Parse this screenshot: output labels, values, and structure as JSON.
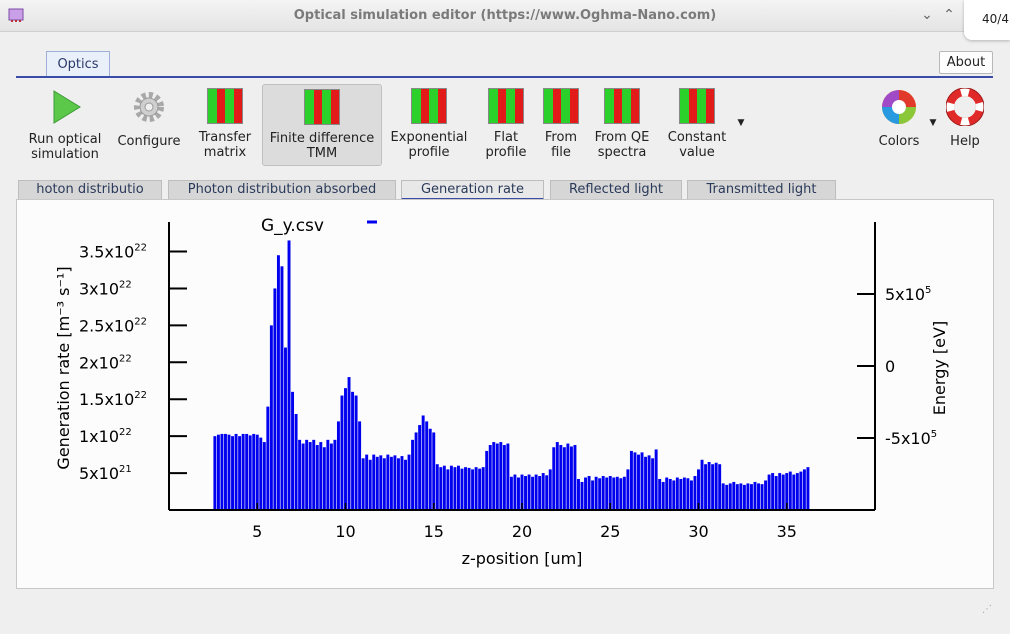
{
  "window": {
    "title": "Optical simulation editor (https://www.Oghma-Nano.com)",
    "counter": "40/4"
  },
  "ribbon": {
    "tab": "Optics",
    "about": "About",
    "tools": [
      {
        "line1": "Run optical",
        "line2": "simulation"
      },
      {
        "line1": "Configure",
        "line2": ""
      },
      {
        "line1": "Transfer",
        "line2": "matrix"
      },
      {
        "line1": "Finite difference",
        "line2": "TMM"
      },
      {
        "line1": "Exponential",
        "line2": "profile"
      },
      {
        "line1": "Flat",
        "line2": "profile"
      },
      {
        "line1": "From",
        "line2": "file"
      },
      {
        "line1": "From QE",
        "line2": "spectra"
      },
      {
        "line1": "Constant",
        "line2": "value"
      },
      {
        "line1": "Colors",
        "line2": ""
      },
      {
        "line1": "Help",
        "line2": ""
      }
    ]
  },
  "subtabs": [
    "hoton distributio",
    "Photon distribution absorbed",
    "Generation rate",
    "Reflected light",
    "Transmitted light"
  ],
  "colors": {
    "accent": "#3a4ca8",
    "series": "#0000ee",
    "run": "#5cc84a"
  },
  "chart_data": {
    "type": "bar",
    "legend_label": "G_y.csv",
    "xlabel": "z-position [um]",
    "ylabel_left": "Generation rate [m⁻³ s⁻¹]",
    "ylabel_right": "Energy [eV]",
    "xlim": [
      0,
      40
    ],
    "ylim": [
      0,
      3.9e+22
    ],
    "xticks": [
      5,
      10,
      15,
      20,
      25,
      30,
      35
    ],
    "yticks_left": [
      {
        "value": 5e+21,
        "mant": "5x10",
        "exp": "21"
      },
      {
        "value": 1e+22,
        "mant": "1x10",
        "exp": "22"
      },
      {
        "value": 1.5e+22,
        "mant": "1.5x10",
        "exp": "22"
      },
      {
        "value": 2e+22,
        "mant": "2x10",
        "exp": "22"
      },
      {
        "value": 2.5e+22,
        "mant": "2.5x10",
        "exp": "22"
      },
      {
        "value": 3e+22,
        "mant": "3x10",
        "exp": "22"
      },
      {
        "value": 3.5e+22,
        "mant": "3.5x10",
        "exp": "22"
      }
    ],
    "yticks_right": [
      {
        "value": 500000,
        "mant": "5x10",
        "exp": "5"
      },
      {
        "value": 0,
        "mant": "0",
        "exp": ""
      },
      {
        "value": -500000,
        "mant": "-5x10",
        "exp": "5"
      }
    ],
    "ylim_right": [
      -1000000,
      1000000
    ],
    "points": [
      [
        2.6,
        1e+22
      ],
      [
        2.8,
        1.02e+22
      ],
      [
        3.0,
        1.03e+22
      ],
      [
        3.2,
        1.03e+22
      ],
      [
        3.4,
        1.02e+22
      ],
      [
        3.6,
        1e+22
      ],
      [
        3.8,
        1.03e+22
      ],
      [
        4.0,
        1e+22
      ],
      [
        4.2,
        1.03e+22
      ],
      [
        4.4,
        1.03e+22
      ],
      [
        4.6,
        1.01e+22
      ],
      [
        4.8,
        1.03e+22
      ],
      [
        5.0,
        1.02e+22
      ],
      [
        5.2,
        9.8e+21
      ],
      [
        5.4,
        9.2e+21
      ],
      [
        5.6,
        1.4e+22
      ],
      [
        5.8,
        2.5e+22
      ],
      [
        6.0,
        3e+22
      ],
      [
        6.2,
        3.45e+22
      ],
      [
        6.4,
        3.3e+22
      ],
      [
        6.6,
        2.2e+22
      ],
      [
        6.8,
        3.65e+22
      ],
      [
        7.0,
        1.6e+22
      ],
      [
        7.2,
        1.3e+22
      ],
      [
        7.4,
        9.5e+21
      ],
      [
        7.6,
        9e+21
      ],
      [
        7.8,
        9.5e+21
      ],
      [
        8.0,
        9.2e+21
      ],
      [
        8.2,
        9.5e+21
      ],
      [
        8.4,
        8.8e+21
      ],
      [
        8.6,
        9.2e+21
      ],
      [
        8.8,
        8.5e+21
      ],
      [
        9.0,
        9.5e+21
      ],
      [
        9.2,
        9e+21
      ],
      [
        9.4,
        9.5e+21
      ],
      [
        9.6,
        1.2e+22
      ],
      [
        9.8,
        1.55e+22
      ],
      [
        10.0,
        1.65e+22
      ],
      [
        10.2,
        1.8e+22
      ],
      [
        10.4,
        1.6e+22
      ],
      [
        10.6,
        1.55e+22
      ],
      [
        10.8,
        1.2e+22
      ],
      [
        11.0,
        7e+21
      ],
      [
        11.2,
        7.5e+21
      ],
      [
        11.4,
        6.8e+21
      ],
      [
        11.6,
        7.5e+21
      ],
      [
        11.8,
        7.2e+21
      ],
      [
        12.0,
        7.4e+21
      ],
      [
        12.2,
        7e+21
      ],
      [
        12.4,
        7.5e+21
      ],
      [
        12.6,
        7.2e+21
      ],
      [
        12.8,
        7.4e+21
      ],
      [
        13.0,
        7e+21
      ],
      [
        13.2,
        7.3e+21
      ],
      [
        13.4,
        6.8e+21
      ],
      [
        13.6,
        7.5e+21
      ],
      [
        13.8,
        9.5e+21
      ],
      [
        14.0,
        1.05e+22
      ],
      [
        14.2,
        1.15e+22
      ],
      [
        14.4,
        1.28e+22
      ],
      [
        14.6,
        1.2e+22
      ],
      [
        14.8,
        1.1e+22
      ],
      [
        15.0,
        1.05e+22
      ],
      [
        15.2,
        6.2e+21
      ],
      [
        15.4,
        5.8e+21
      ],
      [
        15.6,
        6e+21
      ],
      [
        15.8,
        5.5e+21
      ],
      [
        16.0,
        6e+21
      ],
      [
        16.2,
        5.8e+21
      ],
      [
        16.4,
        6e+21
      ],
      [
        16.6,
        5.6e+21
      ],
      [
        16.8,
        5.8e+21
      ],
      [
        17.0,
        5.7e+21
      ],
      [
        17.2,
        5.5e+21
      ],
      [
        17.4,
        5.8e+21
      ],
      [
        17.6,
        5.6e+21
      ],
      [
        17.8,
        5.8e+21
      ],
      [
        18.0,
        8e+21
      ],
      [
        18.2,
        8.8e+21
      ],
      [
        18.4,
        9.2e+21
      ],
      [
        18.6,
        9e+21
      ],
      [
        18.8,
        9.2e+21
      ],
      [
        19.0,
        8.8e+21
      ],
      [
        19.2,
        9e+21
      ],
      [
        19.4,
        4.5e+21
      ],
      [
        19.6,
        4.8e+21
      ],
      [
        19.8,
        4.4e+21
      ],
      [
        20.0,
        4.8e+21
      ],
      [
        20.2,
        4.6e+21
      ],
      [
        20.4,
        4.8e+21
      ],
      [
        20.6,
        4.5e+21
      ],
      [
        20.8,
        4.8e+21
      ],
      [
        21.0,
        4.6e+21
      ],
      [
        21.2,
        5e+21
      ],
      [
        21.4,
        4.7e+21
      ],
      [
        21.6,
        5.5e+21
      ],
      [
        21.8,
        8.5e+21
      ],
      [
        22.0,
        9.2e+21
      ],
      [
        22.2,
        8.8e+21
      ],
      [
        22.4,
        8.5e+21
      ],
      [
        22.6,
        9e+21
      ],
      [
        22.8,
        8.6e+21
      ],
      [
        23.0,
        8.8e+21
      ],
      [
        23.2,
        4.2e+21
      ],
      [
        23.4,
        3.8e+21
      ],
      [
        23.6,
        4.4e+21
      ],
      [
        23.8,
        4.6e+21
      ],
      [
        24.0,
        4e+21
      ],
      [
        24.2,
        4.5e+21
      ],
      [
        24.4,
        4.3e+21
      ],
      [
        24.6,
        4.6e+21
      ],
      [
        24.8,
        4.4e+21
      ],
      [
        25.0,
        4.6e+21
      ],
      [
        25.2,
        4.4e+21
      ],
      [
        25.4,
        4.5e+21
      ],
      [
        25.6,
        4.3e+21
      ],
      [
        25.8,
        4.5e+21
      ],
      [
        26.0,
        5.5e+21
      ],
      [
        26.2,
        8e+21
      ],
      [
        26.4,
        7.8e+21
      ],
      [
        26.6,
        7.5e+21
      ],
      [
        26.8,
        7.8e+21
      ],
      [
        27.0,
        7.2e+21
      ],
      [
        27.2,
        7.4e+21
      ],
      [
        27.4,
        7e+21
      ],
      [
        27.6,
        8.2e+21
      ],
      [
        27.8,
        4.2e+21
      ],
      [
        28.0,
        3.8e+21
      ],
      [
        28.2,
        4.4e+21
      ],
      [
        28.4,
        4.2e+21
      ],
      [
        28.6,
        4e+21
      ],
      [
        28.8,
        4.4e+21
      ],
      [
        29.0,
        4.2e+21
      ],
      [
        29.2,
        4.4e+21
      ],
      [
        29.4,
        4.3e+21
      ],
      [
        29.6,
        4e+21
      ],
      [
        29.8,
        4.6e+21
      ],
      [
        30.0,
        5.5e+21
      ],
      [
        30.2,
        6.8e+21
      ],
      [
        30.4,
        6.2e+21
      ],
      [
        30.6,
        6.5e+21
      ],
      [
        30.8,
        6.2e+21
      ],
      [
        31.0,
        6.4e+21
      ],
      [
        31.2,
        6.2e+21
      ],
      [
        31.4,
        3.6e+21
      ],
      [
        31.6,
        3.4e+21
      ],
      [
        31.8,
        3.6e+21
      ],
      [
        32.0,
        3.8e+21
      ],
      [
        32.2,
        3.5e+21
      ],
      [
        32.4,
        3.6e+21
      ],
      [
        32.6,
        3.4e+21
      ],
      [
        32.8,
        3.6e+21
      ],
      [
        33.0,
        3.5e+21
      ],
      [
        33.2,
        3.8e+21
      ],
      [
        33.4,
        3.6e+21
      ],
      [
        33.6,
        3.5e+21
      ],
      [
        33.8,
        4e+21
      ],
      [
        34.0,
        4.8e+21
      ],
      [
        34.2,
        5e+21
      ],
      [
        34.4,
        4.6e+21
      ],
      [
        34.6,
        5e+21
      ],
      [
        34.8,
        4.8e+21
      ],
      [
        35.0,
        5e+21
      ],
      [
        35.2,
        5.2e+21
      ],
      [
        35.4,
        4.8e+21
      ],
      [
        35.6,
        5e+21
      ],
      [
        35.8,
        5.2e+21
      ],
      [
        36.0,
        5.5e+21
      ],
      [
        36.2,
        5.8e+21
      ]
    ]
  }
}
